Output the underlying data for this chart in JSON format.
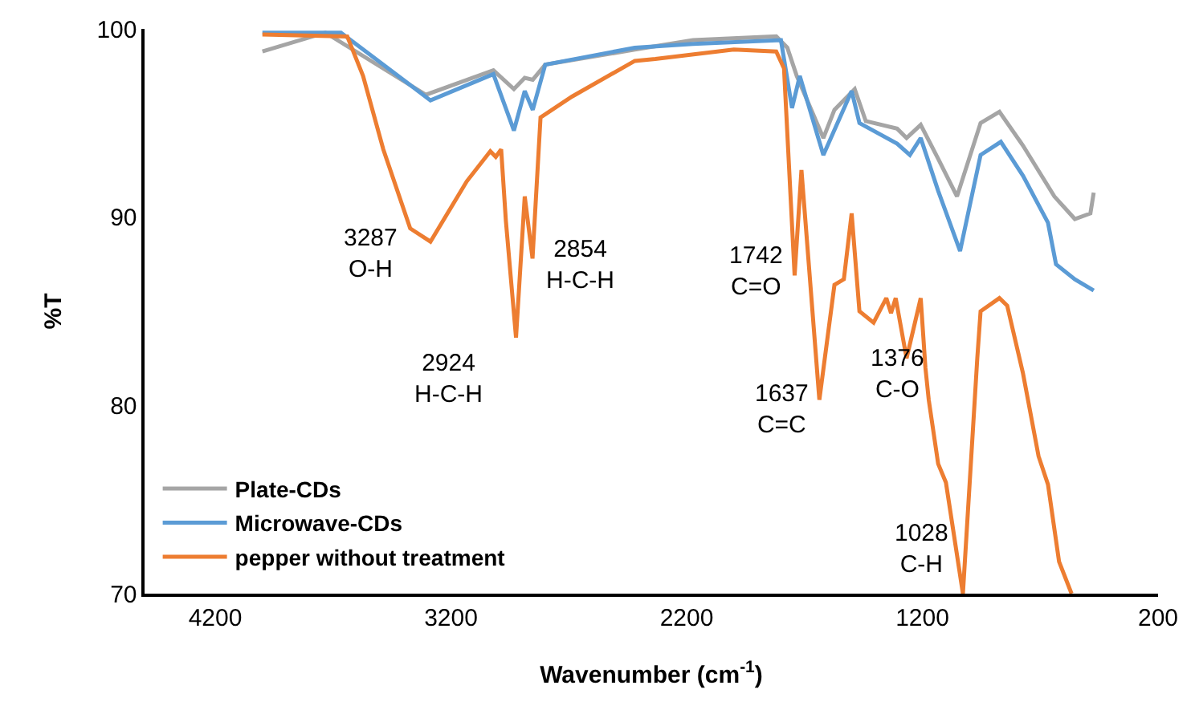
{
  "chart_data": {
    "type": "line",
    "xlabel": "Wavenumber (cm$^{-1}$)",
    "ylabel": "%T",
    "xlim": [
      4500,
      200
    ],
    "xticks": [
      4200,
      3200,
      2200,
      1200,
      200
    ],
    "ylim": [
      70,
      100
    ],
    "yticks": [
      70,
      80,
      90,
      100
    ],
    "legend": "bottom left",
    "marker": "none",
    "line_style": "solid",
    "series": [
      {
        "name": "Plate-CDs",
        "color": "#a5a5a5",
        "x": [
          4000,
          3733,
          3307,
          3020,
          2933,
          2887,
          2853,
          2800,
          2420,
          2173,
          1820,
          1773,
          1733,
          1620,
          1573,
          1487,
          1440,
          1307,
          1267,
          1207,
          1133,
          1053,
          953,
          873,
          773,
          640,
          553,
          487,
          473
        ],
        "values": [
          98.8,
          99.8,
          96.5,
          97.8,
          96.8,
          97.4,
          97.3,
          98.1,
          98.9,
          99.4,
          99.6,
          99.0,
          97.5,
          94.2,
          95.7,
          96.8,
          95.1,
          94.7,
          94.2,
          94.9,
          93.1,
          91.1,
          95.0,
          95.6,
          93.8,
          91.1,
          89.9,
          90.2,
          91.3
        ]
      },
      {
        "name": "Microwave-CDs",
        "color": "#5b9bd5",
        "x": [
          4000,
          3667,
          3287,
          3020,
          2933,
          2887,
          2853,
          2800,
          2420,
          2173,
          1800,
          1753,
          1720,
          1620,
          1500,
          1467,
          1307,
          1253,
          1207,
          1133,
          1040,
          953,
          867,
          773,
          667,
          633,
          553,
          473
        ],
        "values": [
          99.8,
          99.8,
          96.2,
          97.6,
          94.6,
          96.7,
          95.7,
          98.1,
          99.0,
          99.2,
          99.4,
          95.8,
          97.5,
          93.3,
          96.7,
          95.0,
          93.9,
          93.3,
          94.2,
          91.4,
          88.2,
          93.3,
          94.0,
          92.2,
          89.7,
          87.5,
          86.7,
          86.1
        ]
      },
      {
        "name": "pepper without treatment",
        "color": "#ed7d31",
        "x": [
          4000,
          3640,
          3573,
          3487,
          3373,
          3287,
          3133,
          3033,
          3010,
          2987,
          2967,
          2924,
          2887,
          2854,
          2820,
          2687,
          2420,
          2333,
          2000,
          1820,
          1787,
          1742,
          1713,
          1637,
          1573,
          1533,
          1500,
          1467,
          1407,
          1353,
          1333,
          1313,
          1267,
          1207,
          1187,
          1173,
          1133,
          1100,
          1028,
          967,
          953,
          873,
          840,
          773,
          707,
          667,
          620,
          567
        ],
        "values": [
          99.7,
          99.6,
          97.5,
          93.6,
          89.4,
          88.7,
          91.9,
          93.5,
          93.2,
          93.6,
          89.8,
          83.6,
          91.1,
          87.8,
          95.3,
          96.4,
          98.3,
          98.4,
          98.9,
          98.8,
          97.9,
          86.9,
          92.5,
          80.3,
          86.4,
          86.7,
          90.2,
          85.0,
          84.4,
          85.7,
          84.9,
          85.7,
          82.5,
          85.7,
          82.0,
          80.3,
          76.9,
          75.9,
          70.0,
          82.5,
          85.0,
          85.7,
          85.3,
          81.7,
          77.3,
          75.8,
          71.7,
          70.0
        ]
      }
    ],
    "annotations": [
      {
        "text": "3287\nO-H",
        "x": 3287,
        "y": 88.7
      },
      {
        "text": "2924\nH-C-H",
        "x": 2924,
        "y": 83.6
      },
      {
        "text": "2854\nH-C-H",
        "x": 2854,
        "y": 87.75
      },
      {
        "text": "1742\nC=O",
        "x": 1742,
        "y": 86.9
      },
      {
        "text": "1637\nC=C",
        "x": 1637,
        "y": 80.3
      },
      {
        "text": "1376\nC-O",
        "x": 1376,
        "y": 84.4
      },
      {
        "text": "1028\nC-H",
        "x": 1028,
        "y": 70.0
      }
    ]
  }
}
